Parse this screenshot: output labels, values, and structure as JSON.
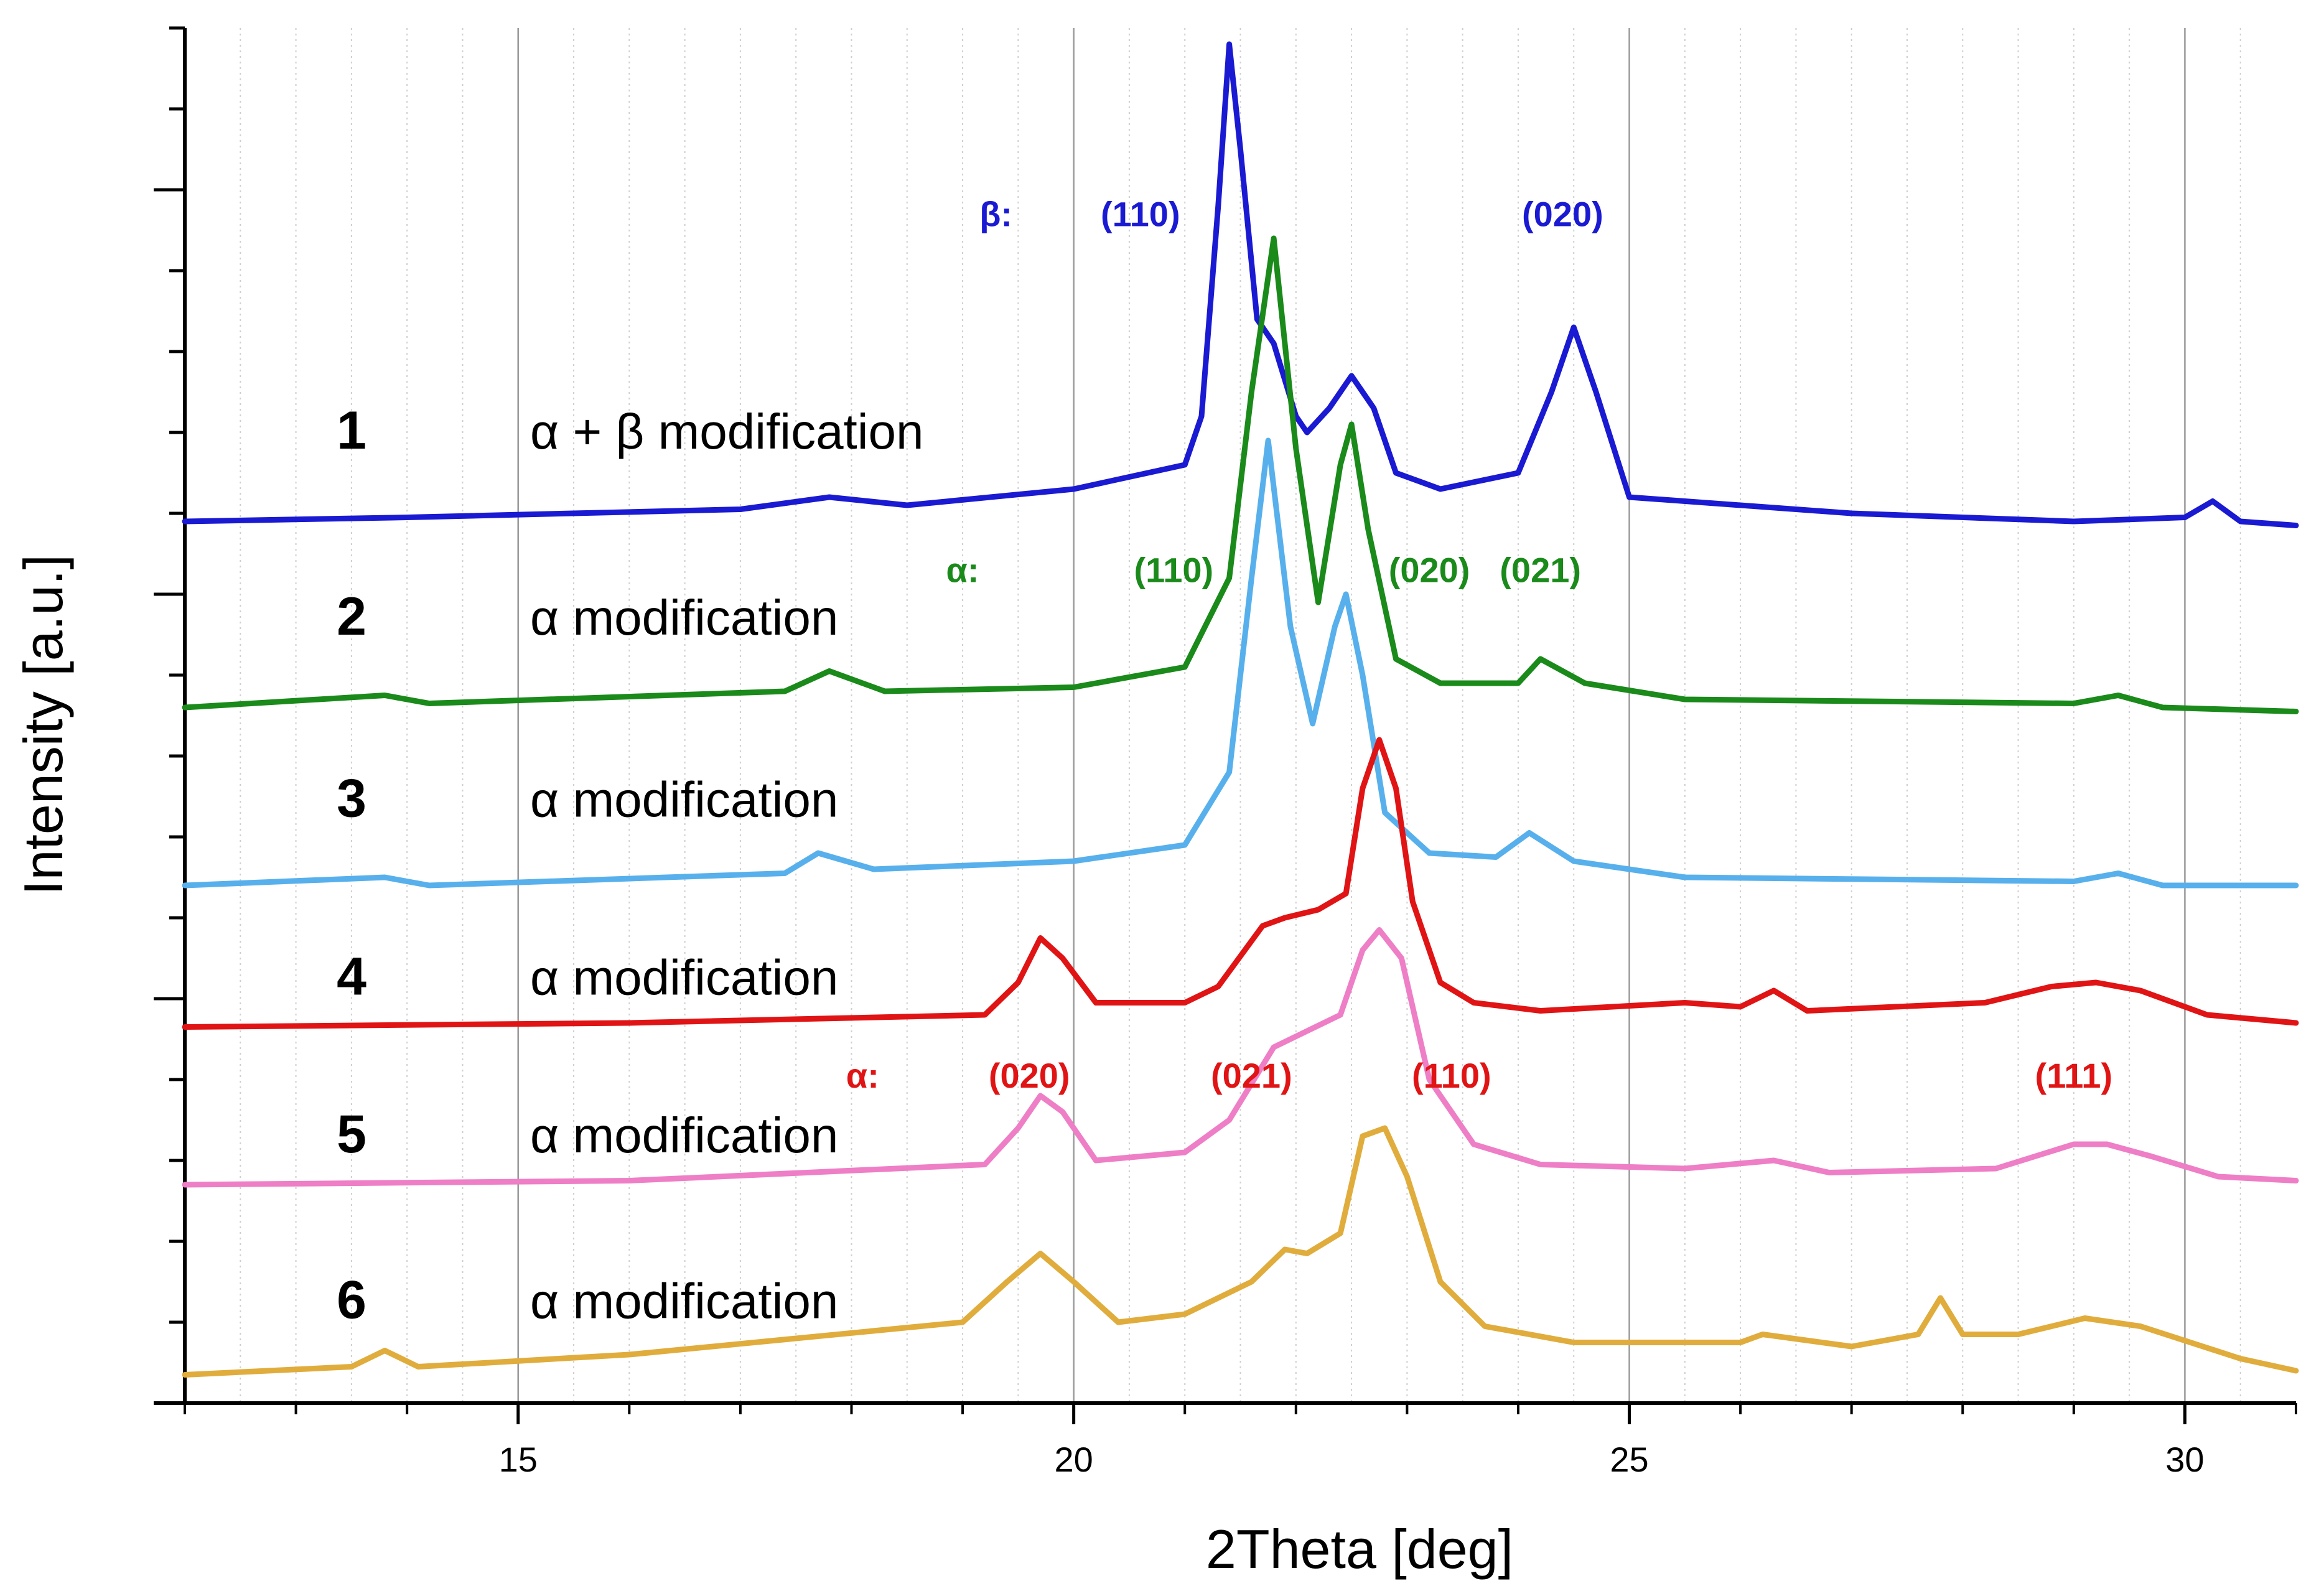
{
  "chart_data": {
    "type": "line",
    "title": "",
    "xlabel": "2Theta [deg]",
    "ylabel": "Intensity [a.u.]",
    "xlim": [
      12,
      31
    ],
    "ylim": [
      0,
      17
    ],
    "x_ticks": [
      15,
      20,
      25,
      30
    ],
    "x_tick_labels": [
      "15",
      "20",
      "25",
      "30"
    ],
    "grid": "vertical",
    "series": [
      {
        "id": 1,
        "number": "1",
        "name": "α + β modification",
        "color": "#1a1ad2",
        "x": [
          12,
          14,
          17,
          17.8,
          18.5,
          20,
          21,
          21.15,
          21.3,
          21.4,
          21.5,
          21.65,
          21.8,
          22.0,
          22.1,
          22.3,
          22.5,
          22.7,
          22.9,
          23.3,
          24.0,
          24.3,
          24.5,
          24.7,
          25.0,
          27,
          29,
          30.0,
          30.25,
          30.5,
          31
        ],
        "y": [
          10.9,
          10.95,
          11.05,
          11.2,
          11.1,
          11.3,
          11.6,
          12.2,
          14.8,
          16.8,
          15.5,
          13.4,
          13.1,
          12.2,
          12.0,
          12.3,
          12.7,
          12.3,
          11.5,
          11.3,
          11.5,
          12.5,
          13.3,
          12.5,
          11.2,
          11.0,
          10.9,
          10.95,
          11.15,
          10.9,
          10.85
        ]
      },
      {
        "id": 2,
        "number": "2",
        "name": "α modification",
        "color": "#1a8a1a",
        "x": [
          12,
          13.8,
          14.2,
          17.4,
          17.8,
          18.3,
          20,
          21.0,
          21.4,
          21.6,
          21.8,
          22.0,
          22.2,
          22.4,
          22.5,
          22.65,
          22.9,
          23.3,
          24.0,
          24.2,
          24.6,
          25.5,
          29,
          29.4,
          29.8,
          31
        ],
        "y": [
          8.6,
          8.75,
          8.65,
          8.8,
          9.05,
          8.8,
          8.85,
          9.1,
          10.2,
          12.5,
          14.4,
          11.8,
          9.9,
          11.6,
          12.1,
          10.8,
          9.2,
          8.9,
          8.9,
          9.2,
          8.9,
          8.7,
          8.65,
          8.75,
          8.6,
          8.55
        ]
      },
      {
        "id": 3,
        "number": "3",
        "name": "α modification",
        "color": "#57b0ec",
        "x": [
          12,
          13.8,
          14.2,
          17.4,
          17.7,
          18.2,
          20,
          21.0,
          21.4,
          21.6,
          21.75,
          21.95,
          22.15,
          22.35,
          22.45,
          22.6,
          22.8,
          23.2,
          23.8,
          24.1,
          24.5,
          25.5,
          29,
          29.4,
          29.8,
          31
        ],
        "y": [
          6.4,
          6.5,
          6.4,
          6.55,
          6.8,
          6.6,
          6.7,
          6.9,
          7.8,
          10.2,
          11.9,
          9.6,
          8.4,
          9.6,
          10.0,
          9.0,
          7.3,
          6.8,
          6.75,
          7.05,
          6.7,
          6.5,
          6.45,
          6.55,
          6.4,
          6.4
        ]
      },
      {
        "id": 4,
        "number": "4",
        "name": "α modification",
        "color": "#e01414",
        "x": [
          12,
          16,
          19.2,
          19.5,
          19.7,
          19.9,
          20.2,
          21.0,
          21.3,
          21.7,
          21.9,
          22.2,
          22.45,
          22.6,
          22.75,
          22.9,
          23.05,
          23.3,
          23.6,
          24.2,
          25.5,
          26.0,
          26.3,
          26.6,
          28.2,
          28.8,
          29.2,
          29.6,
          30.2,
          31
        ],
        "y": [
          4.65,
          4.7,
          4.8,
          5.2,
          5.75,
          5.5,
          4.95,
          4.95,
          5.15,
          5.9,
          6.0,
          6.1,
          6.3,
          7.6,
          8.2,
          7.6,
          6.2,
          5.2,
          4.95,
          4.85,
          4.95,
          4.9,
          5.1,
          4.85,
          4.95,
          5.15,
          5.2,
          5.1,
          4.8,
          4.7
        ]
      },
      {
        "id": 5,
        "number": "5",
        "name": "α modification",
        "color": "#ee7ec6",
        "x": [
          12,
          16,
          19.2,
          19.5,
          19.7,
          19.9,
          20.2,
          21.0,
          21.4,
          21.8,
          22.1,
          22.4,
          22.6,
          22.75,
          22.95,
          23.2,
          23.6,
          24.2,
          25.5,
          26.3,
          26.8,
          28.3,
          29.0,
          29.3,
          29.7,
          30.3,
          31
        ],
        "y": [
          2.7,
          2.75,
          2.95,
          3.4,
          3.8,
          3.6,
          3.0,
          3.1,
          3.5,
          4.4,
          4.6,
          4.8,
          5.6,
          5.85,
          5.5,
          4.0,
          3.2,
          2.95,
          2.9,
          3.0,
          2.85,
          2.9,
          3.2,
          3.2,
          3.05,
          2.8,
          2.75
        ]
      },
      {
        "id": 6,
        "number": "6",
        "name": "α modification",
        "color": "#e0ac3c",
        "x": [
          12,
          13.5,
          13.8,
          14.1,
          16,
          19.0,
          19.4,
          19.7,
          20.0,
          20.4,
          21.0,
          21.6,
          21.9,
          22.1,
          22.4,
          22.6,
          22.8,
          23.0,
          23.3,
          23.7,
          24.5,
          26.0,
          26.2,
          27.0,
          27.6,
          27.8,
          28.0,
          28.5,
          29.1,
          29.6,
          30.5,
          31
        ],
        "y": [
          0.35,
          0.45,
          0.65,
          0.45,
          0.6,
          1.0,
          1.5,
          1.85,
          1.5,
          1.0,
          1.1,
          1.5,
          1.9,
          1.85,
          2.1,
          3.3,
          3.4,
          2.8,
          1.5,
          0.95,
          0.75,
          0.75,
          0.85,
          0.7,
          0.85,
          1.3,
          0.85,
          0.85,
          1.05,
          0.95,
          0.55,
          0.4
        ]
      }
    ],
    "sample_labels": [
      {
        "series": 1,
        "y": 11.8
      },
      {
        "series": 2,
        "y": 9.5
      },
      {
        "series": 3,
        "y": 7.25
      },
      {
        "series": 4,
        "y": 5.05
      },
      {
        "series": 5,
        "y": 3.1
      },
      {
        "series": 6,
        "y": 1.05
      }
    ],
    "annotations": [
      {
        "text": "β:",
        "x": 19.3,
        "y": 14.55,
        "color": "#1a1ad2",
        "small": true
      },
      {
        "text": "(110)",
        "x": 20.6,
        "y": 14.55,
        "color": "#1a1ad2"
      },
      {
        "text": "(020)",
        "x": 24.4,
        "y": 14.55,
        "color": "#1a1ad2"
      },
      {
        "text": "α:",
        "x": 19.0,
        "y": 10.15,
        "color": "#1a8a1a",
        "small": true
      },
      {
        "text": "(110)",
        "x": 20.9,
        "y": 10.15,
        "color": "#1a8a1a"
      },
      {
        "text": "(020)",
        "x": 23.2,
        "y": 10.15,
        "color": "#1a8a1a"
      },
      {
        "text": "(021)",
        "x": 24.2,
        "y": 10.15,
        "color": "#1a8a1a"
      },
      {
        "text": "α:",
        "x": 18.1,
        "y": 3.9,
        "color": "#e01414",
        "small": true
      },
      {
        "text": "(020)",
        "x": 19.6,
        "y": 3.9,
        "color": "#e01414"
      },
      {
        "text": "(021)",
        "x": 21.6,
        "y": 3.9,
        "color": "#e01414"
      },
      {
        "text": "(110)",
        "x": 23.4,
        "y": 3.9,
        "color": "#e01414"
      },
      {
        "text": "(111)",
        "x": 29.0,
        "y": 3.9,
        "color": "#e01414"
      }
    ]
  }
}
